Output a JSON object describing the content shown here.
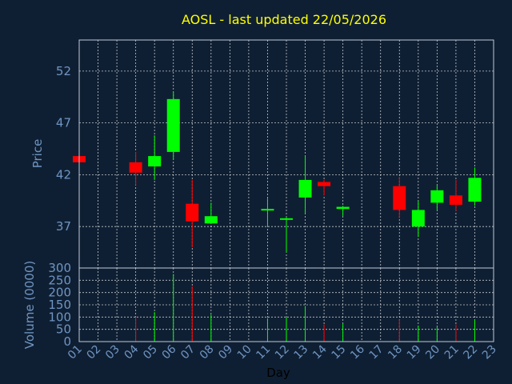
{
  "chart_data": {
    "type": "candlestick",
    "title": "AOSL - last updated 22/05/2026",
    "xlabel": "Day",
    "ylabel": "Price",
    "volume_label": "Volume (0000)",
    "x_ticks": [
      "01",
      "02",
      "03",
      "04",
      "05",
      "06",
      "07",
      "08",
      "09",
      "10",
      "11",
      "12",
      "13",
      "14",
      "15",
      "16",
      "17",
      "18",
      "19",
      "20",
      "21",
      "22",
      "23"
    ],
    "price_ticks": [
      37,
      42,
      47,
      52
    ],
    "price_range": [
      33,
      55
    ],
    "volume_ticks": [
      0,
      50,
      100,
      150,
      200,
      250,
      300
    ],
    "volume_range": [
      0,
      300
    ],
    "grid": true,
    "colors": {
      "background": "#0f1f33",
      "grid": "#ffffff",
      "up": "#00ff00",
      "down": "#ff0000",
      "text": "#6f95c2",
      "title": "#ffff00"
    },
    "candles": [
      {
        "day": 1,
        "open": 43.8,
        "high": 43.8,
        "low": 43.2,
        "close": 43.2,
        "volume": 0
      },
      {
        "day": 4,
        "open": 43.2,
        "high": 44.2,
        "low": 41.0,
        "close": 42.2,
        "volume": 100
      },
      {
        "day": 5,
        "open": 42.8,
        "high": 45.8,
        "low": 41.5,
        "close": 43.8,
        "volume": 120
      },
      {
        "day": 6,
        "open": 44.2,
        "high": 50.0,
        "low": 43.5,
        "close": 49.3,
        "volume": 275
      },
      {
        "day": 7,
        "open": 39.2,
        "high": 41.5,
        "low": 35.0,
        "close": 37.5,
        "volume": 225
      },
      {
        "day": 8,
        "open": 37.3,
        "high": 39.3,
        "low": 37.3,
        "close": 38.0,
        "volume": 110
      },
      {
        "day": 11,
        "open": 38.7,
        "high": 39.7,
        "low": 37.0,
        "close": 38.7,
        "volume": 95
      },
      {
        "day": 12,
        "open": 37.7,
        "high": 37.9,
        "low": 34.5,
        "close": 37.8,
        "volume": 100
      },
      {
        "day": 13,
        "open": 39.8,
        "high": 43.8,
        "low": 38.3,
        "close": 41.5,
        "volume": 145
      },
      {
        "day": 14,
        "open": 41.3,
        "high": 41.5,
        "low": 40.0,
        "close": 40.9,
        "volume": 70
      },
      {
        "day": 15,
        "open": 38.7,
        "high": 39.0,
        "low": 38.0,
        "close": 38.9,
        "volume": 75
      },
      {
        "day": 18,
        "open": 40.9,
        "high": 41.8,
        "low": 37.8,
        "close": 38.6,
        "volume": 90
      },
      {
        "day": 19,
        "open": 37.0,
        "high": 39.5,
        "low": 36.0,
        "close": 38.6,
        "volume": 65
      },
      {
        "day": 20,
        "open": 39.3,
        "high": 41.0,
        "low": 38.6,
        "close": 40.5,
        "volume": 60
      },
      {
        "day": 21,
        "open": 40.0,
        "high": 41.5,
        "low": 38.5,
        "close": 39.1,
        "volume": 70
      },
      {
        "day": 22,
        "open": 39.4,
        "high": 42.7,
        "low": 39.0,
        "close": 41.7,
        "volume": 90
      }
    ]
  }
}
